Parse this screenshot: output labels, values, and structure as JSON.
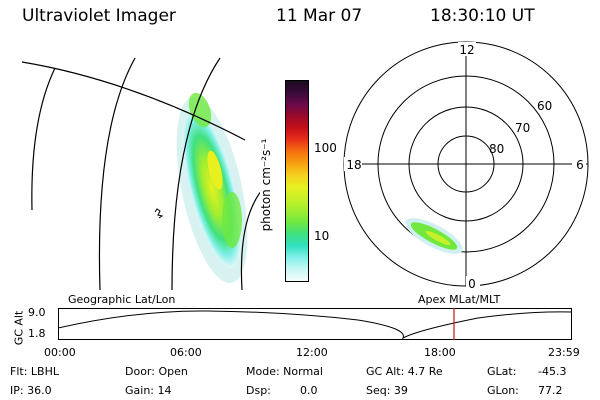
{
  "header": {
    "instrument": "Ultraviolet Imager",
    "date": "11 Mar 07",
    "time": "18:30:10 UT"
  },
  "colorbar": {
    "unit_label": "photon cm⁻²s⁻¹",
    "ticks": [
      "100",
      "10"
    ],
    "colors": [
      "#1a0a1e",
      "#3a0a3a",
      "#6a0a4a",
      "#9a0a2a",
      "#c4101a",
      "#e8301a",
      "#f57010",
      "#f7a010",
      "#f5d020",
      "#e8f020",
      "#c8f028",
      "#a0ee30",
      "#70e840",
      "#40e080",
      "#30e0c0",
      "#80f0e8",
      "#c8f8f4",
      "#f4fcfc"
    ]
  },
  "polar_plot": {
    "mlt_labels": [
      "12",
      "18",
      "6",
      "0"
    ],
    "lat_labels": [
      "60",
      "70",
      "80"
    ]
  },
  "timeline": {
    "ylabel": "GC Alt",
    "yticks": [
      "9.0",
      "1.8"
    ],
    "left_label": "Geographic Lat/Lon",
    "right_label": "Apex MLat/MLT",
    "xticks": [
      "00:00",
      "06:00",
      "12:00",
      "18:00",
      "23:59"
    ],
    "current_marker_color": "#c81414"
  },
  "status": {
    "flt": "Flt: LBHL",
    "ip": "IP: 36.0",
    "door": "Door: Open",
    "gain": "Gain: 14",
    "mode": "Mode: Normal",
    "dsp_label": "Dsp:",
    "dsp_value": "0.0",
    "gc_alt": "GC Alt: 4.7 Re",
    "seq": "Seq: 39",
    "glat_label": "GLat:",
    "glat_value": "-45.3",
    "glon_label": "GLon:",
    "glon_value": "77.2"
  }
}
